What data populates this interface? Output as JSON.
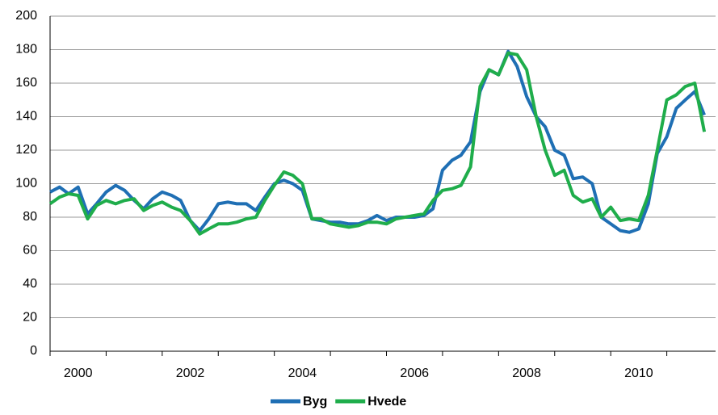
{
  "chart_data": {
    "type": "line",
    "x": [
      1999.5,
      1999.67,
      1999.83,
      2000,
      2000.17,
      2000.33,
      2000.5,
      2000.67,
      2000.83,
      2001,
      2001.17,
      2001.33,
      2001.5,
      2001.67,
      2001.83,
      2002,
      2002.17,
      2002.33,
      2002.5,
      2002.67,
      2002.83,
      2003,
      2003.17,
      2003.33,
      2003.5,
      2003.67,
      2003.83,
      2004,
      2004.17,
      2004.33,
      2004.5,
      2004.67,
      2004.83,
      2005,
      2005.17,
      2005.33,
      2005.5,
      2005.67,
      2005.83,
      2006,
      2006.17,
      2006.33,
      2006.5,
      2006.67,
      2006.83,
      2007,
      2007.17,
      2007.33,
      2007.5,
      2007.67,
      2007.83,
      2008,
      2008.17,
      2008.33,
      2008.5,
      2008.67,
      2008.83,
      2009,
      2009.17,
      2009.33,
      2009.5,
      2009.67,
      2009.83,
      2010,
      2010.17,
      2010.33,
      2010.5,
      2010.67,
      2010.83,
      2011,
      2011.17
    ],
    "series": [
      {
        "name": "Byg",
        "color": "#1f6fb4",
        "values": [
          95,
          98,
          94,
          98,
          82,
          88,
          95,
          99,
          96,
          90,
          85,
          91,
          95,
          93,
          90,
          78,
          72,
          79,
          88,
          89,
          88,
          88,
          84,
          92,
          100,
          102,
          100,
          96,
          79,
          78,
          77,
          77,
          76,
          76,
          78,
          81,
          78,
          80,
          80,
          80,
          81,
          85,
          108,
          114,
          117,
          125,
          155,
          168,
          165,
          179,
          170,
          152,
          140,
          134,
          120,
          117,
          103,
          104,
          100,
          80,
          76,
          72,
          71,
          73,
          88,
          118,
          128,
          145,
          150,
          155,
          141
        ]
      },
      {
        "name": "Hvede",
        "color": "#1fad4b",
        "values": [
          88,
          92,
          94,
          93,
          79,
          87,
          90,
          88,
          90,
          91,
          84,
          87,
          89,
          86,
          84,
          78,
          70,
          73,
          76,
          76,
          77,
          79,
          80,
          90,
          99,
          107,
          105,
          100,
          79,
          79,
          76,
          75,
          74,
          75,
          77,
          77,
          76,
          79,
          80,
          81,
          82,
          90,
          96,
          97,
          99,
          110,
          158,
          168,
          165,
          178,
          177,
          168,
          140,
          120,
          105,
          108,
          93,
          89,
          91,
          80,
          86,
          78,
          79,
          78,
          93,
          120,
          150,
          153,
          158,
          160,
          131
        ]
      }
    ],
    "xlim": [
      1999.5,
      2011.37
    ],
    "xticks": [
      2000,
      2002,
      2004,
      2006,
      2008,
      2010
    ],
    "xtick_marks": [
      1999.5,
      2000.5,
      2001.5,
      2002.5,
      2003.5,
      2004.5,
      2005.5,
      2006.5,
      2007.5,
      2008.5,
      2009.5,
      2010.5
    ],
    "ylim": [
      0,
      200
    ],
    "yticks": [
      0,
      20,
      40,
      60,
      80,
      100,
      120,
      140,
      160,
      180,
      200
    ],
    "grid": true,
    "legend": "bottom"
  }
}
